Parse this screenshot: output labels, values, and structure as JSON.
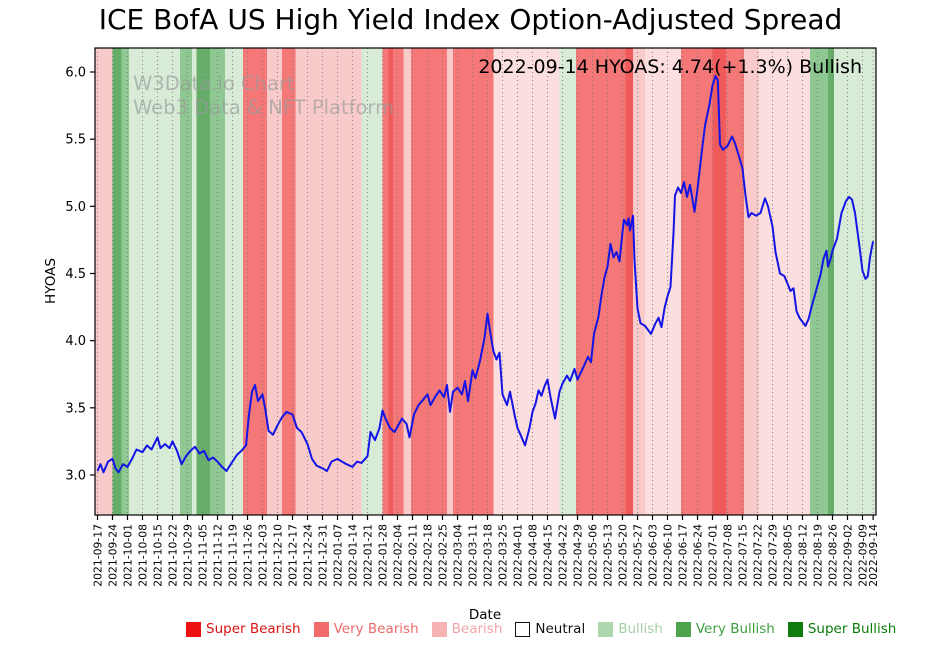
{
  "title": "ICE BofA US High Yield Index Option-Adjusted Spread",
  "annotation": "2022-09-14 HYOAS: 4.74(+1.3%) Bullish",
  "watermark": {
    "line1": "W3Data.io Chart",
    "line2": "Web3 Data & NFT Platform"
  },
  "axes": {
    "x_label": "Date",
    "y_label": "HYOAS"
  },
  "legend": [
    {
      "id": "super-bearish",
      "label": "Super Bearish",
      "swatch": "#ee1111",
      "text_color": "#dd1111",
      "border": "#ee1111"
    },
    {
      "id": "very-bearish",
      "label": "Very Bearish",
      "swatch": "#f26c6c",
      "text_color": "#ee6a6a",
      "border": "#f26c6c"
    },
    {
      "id": "bearish",
      "label": "Bearish",
      "swatch": "#f7b3b3",
      "text_color": "#f2a5a5",
      "border": "#f7b3b3"
    },
    {
      "id": "neutral",
      "label": "Neutral",
      "swatch": "#ffffff",
      "text_color": "#111111",
      "border": "#111111"
    },
    {
      "id": "bullish",
      "label": "Bullish",
      "swatch": "#aed7ae",
      "text_color": "#a3cfa3",
      "border": "#aed7ae"
    },
    {
      "id": "very-bullish",
      "label": "Very Bullish",
      "swatch": "#4da44d",
      "text_color": "#3f9e3f",
      "border": "#4da44d"
    },
    {
      "id": "super-bullish",
      "label": "Super Bullish",
      "swatch": "#0e7d0e",
      "text_color": "#0b7d0b",
      "border": "#0e7d0e"
    }
  ],
  "chart_data": {
    "type": "line",
    "title": "ICE BofA US High Yield Index Option-Adjusted Spread",
    "xlabel": "Date",
    "ylabel": "HYOAS",
    "x_unit": "weeks_since_2021-09-17",
    "ylim": [
      2.7,
      6.18
    ],
    "y_ticks": [
      3.0,
      3.5,
      4.0,
      4.5,
      5.0,
      5.5,
      6.0
    ],
    "x_tick_positions": [
      0,
      1,
      2,
      3,
      4,
      5,
      6,
      7,
      8,
      9,
      10,
      11,
      12,
      13,
      14,
      15,
      16,
      17,
      18,
      19,
      20,
      21,
      22,
      23,
      24,
      25,
      26,
      27,
      28,
      29,
      30,
      31,
      32,
      33,
      34,
      35,
      36,
      37,
      38,
      39,
      40,
      41,
      42,
      43,
      44,
      45,
      46,
      47,
      48,
      49,
      50,
      51,
      51.71
    ],
    "x_tick_labels": [
      "2021-09-17",
      "2021-09-24",
      "2021-10-01",
      "2021-10-08",
      "2021-10-15",
      "2021-10-22",
      "2021-10-29",
      "2021-11-05",
      "2021-11-12",
      "2021-11-19",
      "2021-11-26",
      "2021-12-03",
      "2021-12-10",
      "2021-12-17",
      "2021-12-24",
      "2021-12-31",
      "2022-01-07",
      "2022-01-14",
      "2022-01-21",
      "2022-01-28",
      "2022-02-04",
      "2022-02-11",
      "2022-02-18",
      "2022-02-25",
      "2022-03-04",
      "2022-03-11",
      "2022-03-18",
      "2022-03-25",
      "2022-04-01",
      "2022-04-08",
      "2022-04-15",
      "2022-04-22",
      "2022-04-29",
      "2022-05-06",
      "2022-05-13",
      "2022-05-20",
      "2022-05-27",
      "2022-06-03",
      "2022-06-10",
      "2022-06-17",
      "2022-06-24",
      "2022-07-01",
      "2022-07-08",
      "2022-07-15",
      "2022-07-22",
      "2022-07-29",
      "2022-08-05",
      "2022-08-12",
      "2022-08-19",
      "2022-08-26",
      "2022-09-02",
      "2022-09-09",
      "2022-09-14"
    ],
    "last_point": {
      "date": "2022-09-14",
      "value": 4.74,
      "change_pct": "+1.3%",
      "signal": "Bullish"
    },
    "line_color": "#1414e6",
    "sentiment_colors": {
      "bearish_faint": "#fbdede",
      "bearish": "#f8caca",
      "very_bearish": "#f47878",
      "very_bearish_deep": "#ef5a5a",
      "bullish": "#d7ebd7",
      "very_bullish": "#8fc893",
      "super_bullish": "#68ae6b"
    },
    "bands": [
      {
        "from": -0.2,
        "to": 1.0,
        "sentiment": "bearish"
      },
      {
        "from": 1.0,
        "to": 1.6,
        "sentiment": "super_bullish"
      },
      {
        "from": 1.6,
        "to": 2.1,
        "sentiment": "very_bullish"
      },
      {
        "from": 2.1,
        "to": 5.5,
        "sentiment": "bullish"
      },
      {
        "from": 5.5,
        "to": 6.3,
        "sentiment": "very_bullish"
      },
      {
        "from": 6.3,
        "to": 6.6,
        "sentiment": "bullish"
      },
      {
        "from": 6.6,
        "to": 7.5,
        "sentiment": "super_bullish"
      },
      {
        "from": 7.5,
        "to": 8.5,
        "sentiment": "very_bullish"
      },
      {
        "from": 8.5,
        "to": 9.7,
        "sentiment": "bullish"
      },
      {
        "from": 9.7,
        "to": 11.3,
        "sentiment": "very_bearish"
      },
      {
        "from": 11.3,
        "to": 12.3,
        "sentiment": "bearish"
      },
      {
        "from": 12.3,
        "to": 13.2,
        "sentiment": "very_bearish"
      },
      {
        "from": 13.2,
        "to": 17.6,
        "sentiment": "bearish"
      },
      {
        "from": 17.6,
        "to": 19.0,
        "sentiment": "bullish"
      },
      {
        "from": 19.0,
        "to": 19.4,
        "sentiment": "very_bearish"
      },
      {
        "from": 19.4,
        "to": 19.7,
        "sentiment": "very_bearish_deep"
      },
      {
        "from": 19.7,
        "to": 20.4,
        "sentiment": "very_bearish"
      },
      {
        "from": 20.4,
        "to": 20.9,
        "sentiment": "bearish"
      },
      {
        "from": 20.9,
        "to": 23.3,
        "sentiment": "very_bearish"
      },
      {
        "from": 23.3,
        "to": 23.7,
        "sentiment": "bearish"
      },
      {
        "from": 23.7,
        "to": 26.4,
        "sentiment": "very_bearish"
      },
      {
        "from": 26.4,
        "to": 30.8,
        "sentiment": "bearish_faint"
      },
      {
        "from": 30.8,
        "to": 31.9,
        "sentiment": "bullish"
      },
      {
        "from": 31.9,
        "to": 35.2,
        "sentiment": "very_bearish"
      },
      {
        "from": 35.2,
        "to": 35.7,
        "sentiment": "very_bearish_deep"
      },
      {
        "from": 35.7,
        "to": 36.5,
        "sentiment": "bearish"
      },
      {
        "from": 36.5,
        "to": 38.9,
        "sentiment": "bearish_faint"
      },
      {
        "from": 38.9,
        "to": 41.0,
        "sentiment": "very_bearish"
      },
      {
        "from": 41.0,
        "to": 41.9,
        "sentiment": "very_bearish_deep"
      },
      {
        "from": 41.9,
        "to": 43.1,
        "sentiment": "very_bearish"
      },
      {
        "from": 43.1,
        "to": 44.1,
        "sentiment": "bearish"
      },
      {
        "from": 44.1,
        "to": 47.5,
        "sentiment": "bearish_faint"
      },
      {
        "from": 47.5,
        "to": 48.7,
        "sentiment": "very_bullish"
      },
      {
        "from": 48.7,
        "to": 49.1,
        "sentiment": "super_bullish"
      },
      {
        "from": 49.1,
        "to": 51.9,
        "sentiment": "bullish"
      }
    ],
    "series": [
      {
        "name": "HYOAS",
        "points": [
          [
            0,
            3.03
          ],
          [
            0.2,
            3.08
          ],
          [
            0.4,
            3.02
          ],
          [
            0.7,
            3.1
          ],
          [
            1,
            3.12
          ],
          [
            1.2,
            3.05
          ],
          [
            1.4,
            3.02
          ],
          [
            1.7,
            3.08
          ],
          [
            2,
            3.06
          ],
          [
            2.3,
            3.12
          ],
          [
            2.6,
            3.19
          ],
          [
            3,
            3.17
          ],
          [
            3.3,
            3.22
          ],
          [
            3.6,
            3.19
          ],
          [
            4,
            3.28
          ],
          [
            4.2,
            3.2
          ],
          [
            4.5,
            3.23
          ],
          [
            4.8,
            3.2
          ],
          [
            5,
            3.25
          ],
          [
            5.3,
            3.18
          ],
          [
            5.6,
            3.08
          ],
          [
            5.9,
            3.14
          ],
          [
            6.2,
            3.18
          ],
          [
            6.5,
            3.21
          ],
          [
            6.8,
            3.16
          ],
          [
            7.1,
            3.18
          ],
          [
            7.4,
            3.11
          ],
          [
            7.7,
            3.13
          ],
          [
            8,
            3.1
          ],
          [
            8.3,
            3.06
          ],
          [
            8.6,
            3.03
          ],
          [
            9,
            3.1
          ],
          [
            9.3,
            3.15
          ],
          [
            9.6,
            3.18
          ],
          [
            9.9,
            3.22
          ],
          [
            10.1,
            3.45
          ],
          [
            10.3,
            3.62
          ],
          [
            10.5,
            3.67
          ],
          [
            10.7,
            3.55
          ],
          [
            11,
            3.6
          ],
          [
            11.2,
            3.48
          ],
          [
            11.4,
            3.33
          ],
          [
            11.7,
            3.3
          ],
          [
            12,
            3.37
          ],
          [
            12.3,
            3.43
          ],
          [
            12.6,
            3.47
          ],
          [
            13,
            3.45
          ],
          [
            13.3,
            3.35
          ],
          [
            13.6,
            3.32
          ],
          [
            14,
            3.23
          ],
          [
            14.3,
            3.12
          ],
          [
            14.6,
            3.07
          ],
          [
            15,
            3.05
          ],
          [
            15.3,
            3.03
          ],
          [
            15.6,
            3.1
          ],
          [
            16,
            3.12
          ],
          [
            16.3,
            3.1
          ],
          [
            16.6,
            3.08
          ],
          [
            17,
            3.06
          ],
          [
            17.3,
            3.1
          ],
          [
            17.6,
            3.09
          ],
          [
            18,
            3.14
          ],
          [
            18.2,
            3.32
          ],
          [
            18.5,
            3.26
          ],
          [
            18.8,
            3.35
          ],
          [
            19,
            3.48
          ],
          [
            19.2,
            3.42
          ],
          [
            19.5,
            3.35
          ],
          [
            19.8,
            3.32
          ],
          [
            20,
            3.36
          ],
          [
            20.3,
            3.42
          ],
          [
            20.6,
            3.38
          ],
          [
            20.8,
            3.28
          ],
          [
            21.1,
            3.45
          ],
          [
            21.4,
            3.52
          ],
          [
            21.7,
            3.56
          ],
          [
            22,
            3.6
          ],
          [
            22.2,
            3.52
          ],
          [
            22.5,
            3.58
          ],
          [
            22.8,
            3.63
          ],
          [
            23.1,
            3.58
          ],
          [
            23.3,
            3.67
          ],
          [
            23.5,
            3.47
          ],
          [
            23.7,
            3.62
          ],
          [
            24,
            3.65
          ],
          [
            24.3,
            3.6
          ],
          [
            24.5,
            3.7
          ],
          [
            24.7,
            3.55
          ],
          [
            25,
            3.78
          ],
          [
            25.2,
            3.72
          ],
          [
            25.5,
            3.85
          ],
          [
            25.8,
            4.02
          ],
          [
            26,
            4.2
          ],
          [
            26.2,
            4.05
          ],
          [
            26.4,
            3.92
          ],
          [
            26.6,
            3.86
          ],
          [
            26.8,
            3.91
          ],
          [
            27,
            3.6
          ],
          [
            27.3,
            3.52
          ],
          [
            27.5,
            3.62
          ],
          [
            27.8,
            3.45
          ],
          [
            28,
            3.35
          ],
          [
            28.2,
            3.3
          ],
          [
            28.5,
            3.22
          ],
          [
            28.8,
            3.35
          ],
          [
            29,
            3.47
          ],
          [
            29.2,
            3.53
          ],
          [
            29.4,
            3.63
          ],
          [
            29.6,
            3.59
          ],
          [
            29.8,
            3.66
          ],
          [
            30,
            3.71
          ],
          [
            30.2,
            3.58
          ],
          [
            30.5,
            3.42
          ],
          [
            30.8,
            3.62
          ],
          [
            31,
            3.68
          ],
          [
            31.3,
            3.74
          ],
          [
            31.5,
            3.7
          ],
          [
            31.8,
            3.79
          ],
          [
            32,
            3.71
          ],
          [
            32.3,
            3.78
          ],
          [
            32.5,
            3.83
          ],
          [
            32.7,
            3.88
          ],
          [
            32.9,
            3.84
          ],
          [
            33.1,
            4.05
          ],
          [
            33.4,
            4.18
          ],
          [
            33.6,
            4.34
          ],
          [
            33.8,
            4.47
          ],
          [
            34,
            4.55
          ],
          [
            34.2,
            4.72
          ],
          [
            34.4,
            4.62
          ],
          [
            34.6,
            4.66
          ],
          [
            34.8,
            4.59
          ],
          [
            35,
            4.81
          ],
          [
            35.1,
            4.9
          ],
          [
            35.3,
            4.86
          ],
          [
            35.4,
            4.91
          ],
          [
            35.5,
            4.82
          ],
          [
            35.7,
            4.93
          ],
          [
            35.8,
            4.6
          ],
          [
            36,
            4.24
          ],
          [
            36.2,
            4.13
          ],
          [
            36.5,
            4.11
          ],
          [
            36.9,
            4.05
          ],
          [
            37.2,
            4.13
          ],
          [
            37.4,
            4.17
          ],
          [
            37.6,
            4.1
          ],
          [
            37.8,
            4.24
          ],
          [
            38,
            4.33
          ],
          [
            38.2,
            4.4
          ],
          [
            38.4,
            4.8
          ],
          [
            38.5,
            5.08
          ],
          [
            38.7,
            5.14
          ],
          [
            38.9,
            5.1
          ],
          [
            39.1,
            5.18
          ],
          [
            39.3,
            5.07
          ],
          [
            39.5,
            5.16
          ],
          [
            39.8,
            4.96
          ],
          [
            40,
            5.13
          ],
          [
            40.3,
            5.42
          ],
          [
            40.5,
            5.6
          ],
          [
            40.8,
            5.76
          ],
          [
            41,
            5.9
          ],
          [
            41.2,
            5.97
          ],
          [
            41.35,
            5.94
          ],
          [
            41.5,
            5.46
          ],
          [
            41.7,
            5.42
          ],
          [
            42,
            5.45
          ],
          [
            42.3,
            5.52
          ],
          [
            42.5,
            5.47
          ],
          [
            42.8,
            5.36
          ],
          [
            43,
            5.28
          ],
          [
            43.2,
            5.08
          ],
          [
            43.4,
            4.92
          ],
          [
            43.6,
            4.95
          ],
          [
            43.9,
            4.93
          ],
          [
            44.2,
            4.95
          ],
          [
            44.5,
            5.06
          ],
          [
            44.7,
            5
          ],
          [
            45,
            4.85
          ],
          [
            45.2,
            4.66
          ],
          [
            45.5,
            4.5
          ],
          [
            45.8,
            4.48
          ],
          [
            46.2,
            4.37
          ],
          [
            46.4,
            4.39
          ],
          [
            46.6,
            4.22
          ],
          [
            46.8,
            4.17
          ],
          [
            47,
            4.14
          ],
          [
            47.2,
            4.11
          ],
          [
            47.4,
            4.16
          ],
          [
            47.6,
            4.25
          ],
          [
            47.9,
            4.37
          ],
          [
            48.2,
            4.49
          ],
          [
            48.4,
            4.61
          ],
          [
            48.6,
            4.67
          ],
          [
            48.7,
            4.55
          ],
          [
            48.9,
            4.62
          ],
          [
            49,
            4.67
          ],
          [
            49.3,
            4.76
          ],
          [
            49.6,
            4.95
          ],
          [
            49.9,
            5.04
          ],
          [
            50.1,
            5.07
          ],
          [
            50.3,
            5.05
          ],
          [
            50.5,
            4.95
          ],
          [
            50.8,
            4.7
          ],
          [
            51,
            4.52
          ],
          [
            51.2,
            4.46
          ],
          [
            51.35,
            4.48
          ],
          [
            51.5,
            4.62
          ],
          [
            51.6,
            4.68
          ],
          [
            51.71,
            4.74
          ]
        ]
      }
    ]
  }
}
